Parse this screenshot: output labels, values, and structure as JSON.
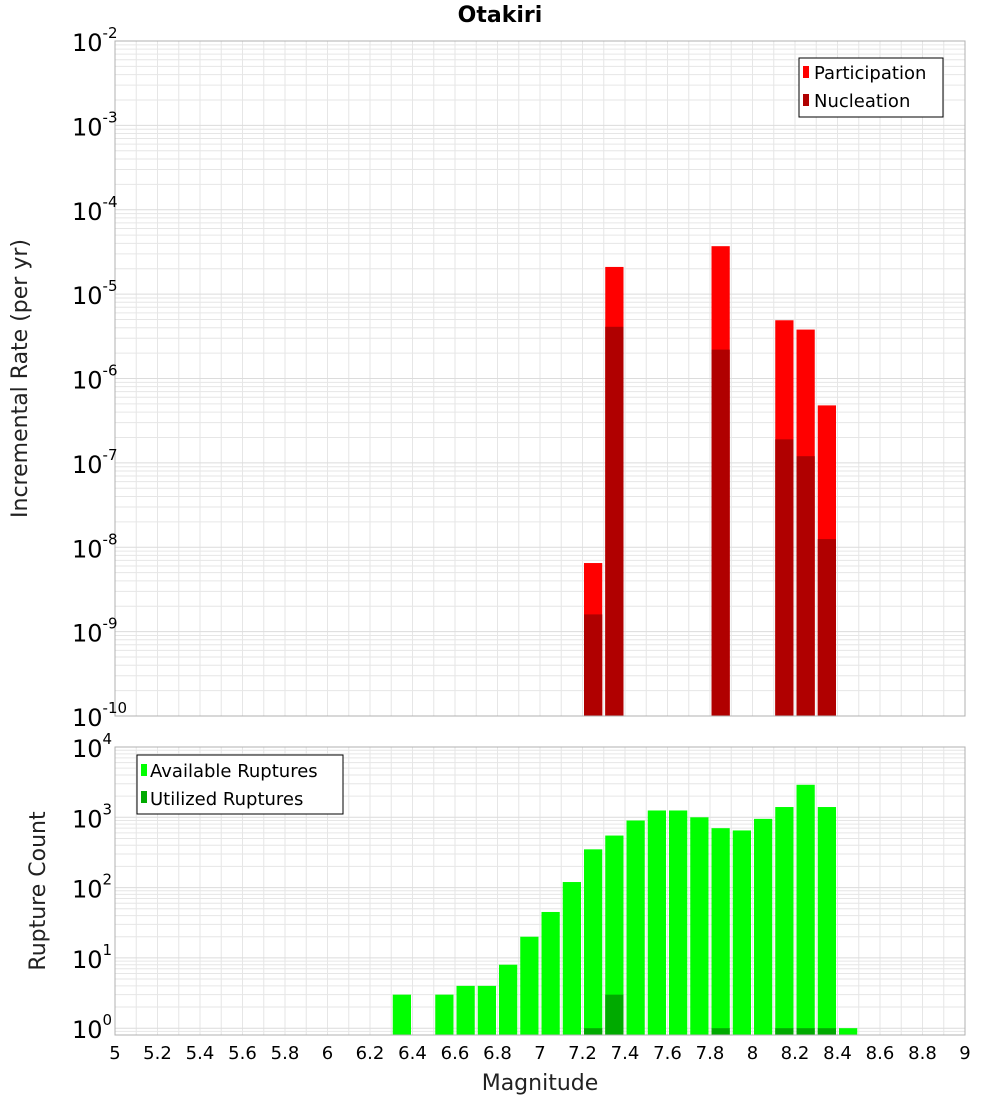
{
  "title": "Otakiri",
  "xlabel": "Magnitude",
  "colors": {
    "participation": "#ff0000",
    "nucleation": "#b00000",
    "available": "#00ff00",
    "utilized": "#00aa00",
    "grid": "#e6e6e6",
    "frame": "#b0b0b0"
  },
  "chart_data": [
    {
      "type": "bar",
      "title": "Otakiri",
      "ylabel": "Incremental Rate (per yr)",
      "xlabel": "",
      "xlim": [
        5,
        9
      ],
      "ylim": [
        1e-10,
        0.01
      ],
      "yscale": "log",
      "grid": true,
      "legend_position": "top-right",
      "bin_width": 0.1,
      "series": [
        {
          "name": "Participation",
          "x": [
            7.25,
            7.35,
            7.85,
            8.15,
            8.25,
            8.35
          ],
          "values": [
            6.5e-09,
            2.1e-05,
            3.7e-05,
            4.9e-06,
            3.8e-06,
            4.8e-07
          ]
        },
        {
          "name": "Nucleation",
          "x": [
            7.25,
            7.35,
            7.85,
            8.15,
            8.25,
            8.35
          ],
          "values": [
            1.6e-09,
            4.1e-06,
            2.2e-06,
            1.9e-07,
            1.2e-07,
            1.25e-08
          ]
        }
      ]
    },
    {
      "type": "bar",
      "ylabel": "Rupture Count",
      "xlabel": "Magnitude",
      "xlim": [
        5,
        9
      ],
      "ylim": [
        0.8,
        10000.0
      ],
      "yscale": "log",
      "grid": true,
      "legend_position": "top-left",
      "bin_width": 0.1,
      "xticks": [
        "5",
        "5.2",
        "5.4",
        "5.6",
        "5.8",
        "6",
        "6.2",
        "6.4",
        "6.6",
        "6.8",
        "7",
        "7.2",
        "7.4",
        "7.6",
        "7.8",
        "8",
        "8.2",
        "8.4",
        "8.6",
        "8.8",
        "9"
      ],
      "series": [
        {
          "name": "Available Ruptures",
          "x": [
            6.35,
            6.55,
            6.65,
            6.75,
            6.85,
            6.95,
            7.05,
            7.15,
            7.25,
            7.35,
            7.45,
            7.55,
            7.65,
            7.75,
            7.85,
            7.95,
            8.05,
            8.15,
            8.25,
            8.35,
            8.45
          ],
          "values": [
            3,
            3,
            4,
            4,
            8,
            20,
            45,
            120,
            350,
            550,
            900,
            1250,
            1250,
            1000,
            700,
            650,
            950,
            1400,
            2900,
            1400,
            1
          ]
        },
        {
          "name": "Utilized Ruptures",
          "x": [
            7.25,
            7.35,
            7.85,
            8.15,
            8.25,
            8.35
          ],
          "values": [
            1,
            3,
            1,
            1,
            1,
            1
          ]
        }
      ]
    }
  ]
}
